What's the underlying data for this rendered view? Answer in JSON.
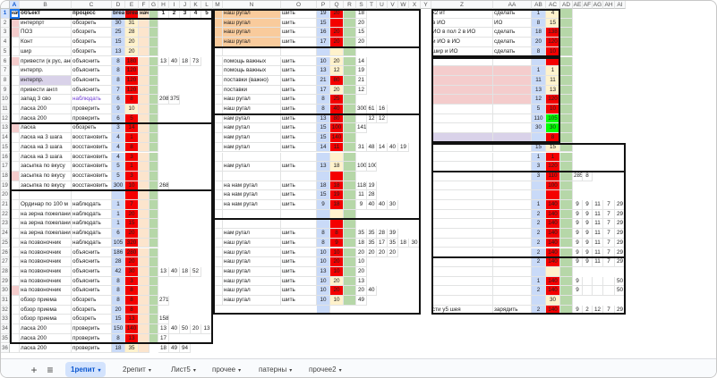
{
  "columns": [
    {
      "label": "A",
      "w": 11,
      "sel": true
    },
    {
      "label": "B",
      "w": 58
    },
    {
      "label": "C",
      "w": 45
    },
    {
      "label": "D",
      "w": 15
    },
    {
      "label": "E",
      "w": 15
    },
    {
      "label": "F",
      "w": 12
    },
    {
      "label": "G",
      "w": 10
    },
    {
      "label": "H",
      "w": 12
    },
    {
      "label": "I",
      "w": 12
    },
    {
      "label": "J",
      "w": 12
    },
    {
      "label": "K",
      "w": 12
    },
    {
      "label": "L",
      "w": 13
    },
    {
      "label": "M",
      "w": 11
    },
    {
      "label": "N",
      "w": 65
    },
    {
      "label": "O",
      "w": 40
    },
    {
      "label": "P",
      "w": 15
    },
    {
      "label": "Q",
      "w": 15
    },
    {
      "label": "R",
      "w": 14
    },
    {
      "label": "S",
      "w": 12
    },
    {
      "label": "T",
      "w": 11
    },
    {
      "label": "U",
      "w": 12
    },
    {
      "label": "V",
      "w": 12
    },
    {
      "label": "W",
      "w": 12
    },
    {
      "label": "X",
      "w": 13
    },
    {
      "label": "Y",
      "w": 12
    },
    {
      "label": "Z",
      "w": 69
    },
    {
      "label": "AA",
      "w": 43
    },
    {
      "label": "AB",
      "w": 16
    },
    {
      "label": "AC",
      "w": 16
    },
    {
      "label": "AD",
      "w": 14
    },
    {
      "label": "AE",
      "w": 11
    },
    {
      "label": "AF",
      "w": 11
    },
    {
      "label": "AG",
      "w": 12
    },
    {
      "label": "AH",
      "w": 13
    },
    {
      "label": "AI",
      "w": 12
    }
  ],
  "row_count": 36,
  "header_row": [
    "нач",
    "объект",
    "процесс",
    "break l",
    "break F",
    "нач",
    "",
    "1",
    "2",
    "3",
    "4",
    "5"
  ],
  "rows_A": [
    [
      "",
      "интерпрт",
      "обозреть",
      "30",
      "31"
    ],
    [
      "",
      "ПОЗ",
      "обозреть",
      "25",
      "28"
    ],
    [
      "",
      "Конт",
      "обозреть",
      "15",
      "20"
    ],
    [
      "",
      "шир",
      "обозреть",
      "13",
      "20"
    ],
    [
      "",
      "привести (к рус, англ)",
      "объяснить",
      "8",
      "180",
      "",
      "",
      "13",
      "40",
      "18",
      "73"
    ],
    [
      "",
      "интерпр.",
      "объяснить",
      "8",
      "120"
    ],
    [
      "",
      "интерпр.",
      "объяснить",
      "8",
      "120"
    ],
    [
      "",
      "привести англ",
      "объяснить",
      "7",
      "120"
    ],
    [
      "",
      "запад 3 сво",
      "наблюдать",
      "6",
      "8",
      "",
      "",
      "208",
      "375"
    ],
    [
      "",
      "ласка 200",
      "проверить",
      "9",
      "10"
    ],
    [
      "",
      "ласка 200",
      "проверить",
      "6",
      "5"
    ],
    [
      "",
      "ласка",
      "обозреть",
      "3",
      "14"
    ],
    [
      "",
      "ласка на 3 шага",
      "восстановить",
      "4",
      "1"
    ],
    [
      "",
      "ласка на 3 шага",
      "восстановить",
      "4",
      "8"
    ],
    [
      "",
      "ласка на 3 шага",
      "восстановить",
      "4",
      "3"
    ],
    [
      "",
      "засыпка по вкусу",
      "восстановить",
      "5",
      "1"
    ],
    [
      "",
      "засыпка по вкусу",
      "восстановить",
      "5",
      "3"
    ],
    [
      "",
      "засыпка по вкусу",
      "восстановить",
      "300",
      "10",
      "",
      "",
      "268"
    ],
    [
      "",
      "",
      "",
      "",
      ""
    ],
    [
      "",
      "Ординар по 100 м",
      "наблюдать",
      "1",
      "7"
    ],
    [
      "",
      "на зерна пожелания",
      "наблюдать",
      "1",
      "20"
    ],
    [
      "",
      "на зерна пожелания",
      "наблюдать",
      "1",
      "15"
    ],
    [
      "",
      "на зерна пожелания",
      "наблюдать",
      "6",
      "20"
    ],
    [
      "",
      "на позвоночник",
      "наблюдать",
      "105",
      "320"
    ],
    [
      "",
      "на позвоночник",
      "объяснить",
      "186",
      "280"
    ],
    [
      "",
      "на позвоночник",
      "объяснить",
      "28",
      "20"
    ],
    [
      "",
      "на позвоночник",
      "объяснить",
      "42",
      "30",
      "",
      "",
      "13",
      "40",
      "18",
      "52"
    ],
    [
      "",
      "на позвоночник",
      "объяснить",
      "8",
      "3"
    ],
    [
      "",
      "на позвоночник",
      "объяснить",
      "8",
      "8"
    ],
    [
      "",
      "обзор приема",
      "обозреть",
      "8",
      "8",
      "",
      "",
      "271"
    ],
    [
      "",
      "обзор приема",
      "обозреть",
      "20",
      "8"
    ],
    [
      "",
      "обзор приема",
      "обозреть",
      "15",
      "13",
      "",
      "",
      "158"
    ],
    [
      "",
      "ласка 200",
      "проверить",
      "150",
      "140",
      "",
      "",
      "13",
      "40",
      "50",
      "20",
      "13"
    ],
    [
      "",
      "ласка 200",
      "проверить",
      "8",
      "13",
      "",
      "",
      "17"
    ],
    [
      "",
      "ласка 200",
      "проверить",
      "18",
      "35",
      "",
      "",
      "18",
      "49",
      "94"
    ]
  ],
  "rows_N": [
    [
      "",
      "наш ругал",
      "шить",
      "19",
      "20",
      "",
      "",
      "18"
    ],
    [
      "",
      "наш ругал",
      "шить",
      "15",
      "",
      "",
      "",
      "20"
    ],
    [
      "",
      "наш ругал",
      "шить",
      "16",
      "20",
      "",
      "",
      "15"
    ],
    [
      "",
      "наш ругал",
      "шить",
      "17",
      "20",
      "",
      "",
      "20"
    ],
    [
      "",
      "",
      "",
      "",
      ""
    ],
    [
      "",
      "помощь важных",
      "шить",
      "10",
      "20",
      "",
      "",
      "14"
    ],
    [
      "",
      "помощь важных",
      "шить",
      "13",
      "12",
      "",
      "",
      "19"
    ],
    [
      "",
      "поставки (важно)",
      "шить",
      "21",
      "80",
      "",
      "",
      "21"
    ],
    [
      "",
      "поставки",
      "шить",
      "17",
      "20",
      "",
      "",
      "12"
    ],
    [
      "",
      "наш ругал",
      "шить",
      "8",
      "25"
    ],
    [
      "",
      "наш ругал",
      "шить",
      "8",
      "40",
      "",
      "",
      "300",
      "61",
      "16"
    ],
    [
      "",
      "нам ругал",
      "шить",
      "13",
      "80",
      "",
      "",
      "",
      "12",
      "12"
    ],
    [
      "",
      "нам ругал",
      "шить",
      "15",
      "100",
      "",
      "",
      "141"
    ],
    [
      "",
      "нам ругал",
      "шить",
      "15",
      "140"
    ],
    [
      "",
      "нам ругал",
      "шить",
      "14",
      "11",
      "",
      "",
      "31",
      "48",
      "14",
      "40",
      "19"
    ],
    [
      "",
      "",
      "",
      "",
      ""
    ],
    [
      "",
      "нам ругал",
      "шить",
      "13",
      "18",
      "",
      "",
      "100",
      "100"
    ],
    [
      "",
      "",
      "",
      "",
      ""
    ],
    [
      "",
      "на нам ругал",
      "шить",
      "18",
      "18",
      "",
      "",
      "118",
      "19"
    ],
    [
      "",
      "на нам ругал",
      "шить",
      "15",
      "19",
      "",
      "",
      "11",
      "28"
    ],
    [
      "",
      "на нам ругал",
      "шить",
      "9",
      "18",
      "",
      "",
      "9",
      "40",
      "40",
      "30"
    ],
    [
      "",
      "",
      "",
      "",
      ""
    ],
    [
      "",
      "",
      "",
      "",
      ""
    ],
    [
      "",
      "нам ругал",
      "шить",
      "8",
      "8",
      "",
      "",
      "35",
      "35",
      "28",
      "39"
    ],
    [
      "",
      "наш ругал",
      "шить",
      "8",
      "9",
      "",
      "",
      "18",
      "35",
      "17",
      "35",
      "18",
      "30"
    ],
    [
      "",
      "наш ругал",
      "шить",
      "10",
      "10",
      "",
      "",
      "20",
      "20",
      "20",
      "20"
    ],
    [
      "",
      "наш ругал",
      "шить",
      "10",
      "20",
      "",
      "",
      "10"
    ],
    [
      "",
      "наш ругал",
      "шить",
      "13",
      "10",
      "",
      "",
      "20"
    ],
    [
      "",
      "наш ругал",
      "шить",
      "10",
      "20",
      "",
      "",
      "13"
    ],
    [
      "",
      "наш ругал",
      "шить",
      "10",
      "20",
      "",
      "",
      "20",
      "40"
    ],
    [
      "",
      "наш ругал",
      "шить",
      "10",
      "10",
      "",
      "",
      "49"
    ]
  ],
  "rows_Z": [
    [
      "",
      "к2 ит",
      "сделать",
      "1",
      "4"
    ],
    [
      "",
      "в ИО",
      "ИО",
      "8",
      "15"
    ],
    [
      "",
      "ИО в пол 2 в ИО",
      "сделать",
      "18",
      "138"
    ],
    [
      "",
      "и ИО в ИО",
      "сделать",
      "20",
      "120"
    ],
    [
      "",
      "шир и ИО",
      "сделать",
      "8",
      "10"
    ],
    [
      "",
      "",
      "",
      "",
      ""
    ],
    [
      "",
      "",
      "",
      "1",
      "1"
    ],
    [
      "",
      "",
      "",
      "11",
      "11"
    ],
    [
      "",
      "",
      "",
      "13",
      "13"
    ],
    [
      "",
      "",
      "",
      "12",
      "120"
    ],
    [
      "",
      "",
      "",
      "5",
      "10"
    ],
    [
      "",
      "",
      "",
      "110",
      "105"
    ],
    [
      "",
      "",
      "",
      "30",
      "30"
    ],
    [
      "",
      "",
      "",
      "",
      "8"
    ],
    [
      "",
      "",
      "",
      "15",
      "15"
    ],
    [
      "",
      "",
      "",
      "1",
      "1"
    ],
    [
      "",
      "",
      "",
      "3",
      "120"
    ],
    [
      "",
      "",
      "",
      "3",
      "110",
      "",
      "285",
      "8"
    ],
    [
      "",
      "",
      "",
      "",
      "100"
    ],
    [
      "",
      "",
      "",
      "",
      ""
    ],
    [
      "",
      "",
      "",
      "1",
      "140",
      "",
      "9",
      "9",
      "11",
      "7",
      "29"
    ],
    [
      "",
      "",
      "",
      "2",
      "140",
      "",
      "9",
      "9",
      "11",
      "7",
      "29"
    ],
    [
      "",
      "",
      "",
      "2",
      "140",
      "",
      "9",
      "9",
      "11",
      "7",
      "29"
    ],
    [
      "",
      "",
      "",
      "2",
      "140",
      "",
      "9",
      "9",
      "11",
      "7",
      "29"
    ],
    [
      "",
      "",
      "",
      "2",
      "140",
      "",
      "9",
      "9",
      "11",
      "7",
      "29"
    ],
    [
      "",
      "",
      "",
      "2",
      "140",
      "",
      "9",
      "9",
      "11",
      "7",
      "29"
    ],
    [
      "",
      "",
      "",
      "2",
      "140",
      "",
      "9",
      "9",
      "11",
      "7",
      "29"
    ],
    [
      "",
      "",
      "",
      "",
      ""
    ],
    [
      "",
      "",
      "",
      "1",
      "140",
      "",
      "9",
      "",
      "",
      "",
      "50"
    ],
    [
      "",
      "",
      "",
      "2",
      "140",
      "",
      "9",
      "",
      "",
      "",
      "50"
    ],
    [
      "",
      "",
      "",
      "",
      "30"
    ],
    [
      "",
      "сти у5 шея",
      "зарядить",
      "2",
      "140",
      "",
      "9",
      "2",
      "12",
      "7",
      "29"
    ]
  ],
  "sheets": {
    "tabs": [
      {
        "label": "1репит",
        "active": true,
        "caret": true
      },
      {
        "label": "2репит",
        "caret": true
      },
      {
        "label": "Лист5",
        "caret": true
      },
      {
        "label": "прочее",
        "caret": true
      },
      {
        "label": "патерны",
        "caret": true
      },
      {
        "label": "прочее2",
        "caret": true
      }
    ],
    "add_glyph": "+",
    "menu_glyph": "≡",
    "caret_glyph": "▾"
  },
  "colors": {
    "red": "#f40000",
    "blue": "#c9daf8",
    "green": "#b6d7a8",
    "beige": "#fce5cd",
    "orange": "#f9cb9c",
    "pink": "#f4cccc",
    "lavender": "#d9d2e9",
    "bright_green": "#00ff00",
    "light_yellow": "#fff2cc",
    "purple_text": "#6f3bd3"
  }
}
